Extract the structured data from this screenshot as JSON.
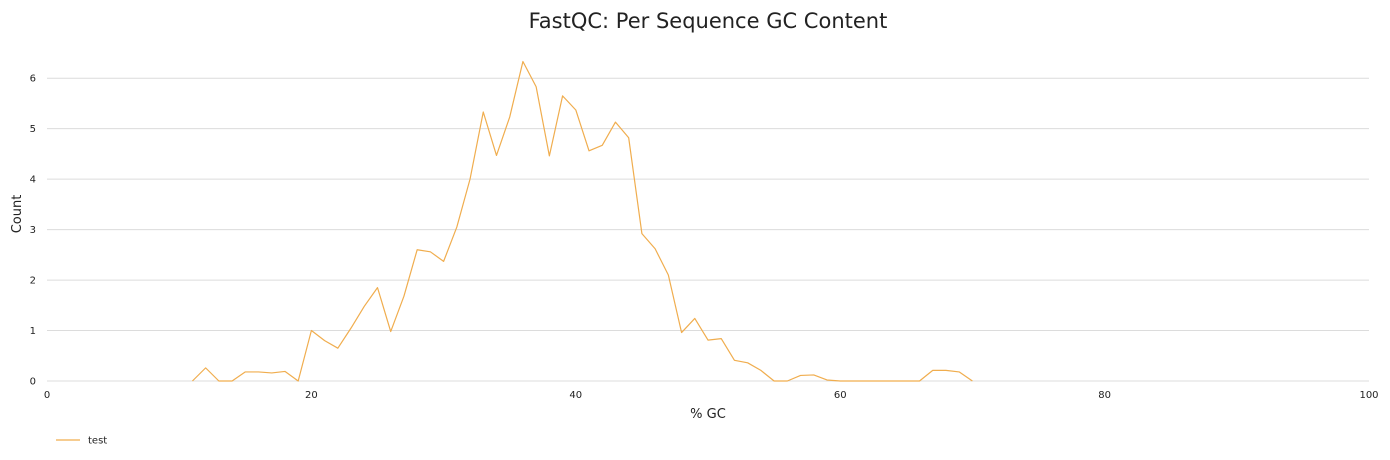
{
  "chart_data": {
    "type": "line",
    "title": "FastQC: Per Sequence GC Content",
    "xlabel": "% GC",
    "ylabel": "Count",
    "xlim": [
      0,
      100
    ],
    "ylim": [
      0,
      6.4
    ],
    "x_ticks": [
      0,
      20,
      40,
      60,
      80,
      100
    ],
    "x_tick_labels": [
      "0",
      "20",
      "40",
      "60",
      "80",
      "100"
    ],
    "y_ticks": [
      0,
      1,
      2,
      3,
      4,
      5,
      6
    ],
    "y_tick_labels": [
      "0",
      "1",
      "2",
      "3",
      "4",
      "5",
      "6"
    ],
    "grid": "horizontal",
    "legend_position": "bottom-left",
    "series": [
      {
        "name": "test",
        "color": "#f0ad4e",
        "points": [
          [
            11,
            0
          ],
          [
            12,
            0.26
          ],
          [
            13,
            0
          ],
          [
            14,
            0
          ],
          [
            15,
            0.18
          ],
          [
            16,
            0.18
          ],
          [
            17,
            0.16
          ],
          [
            18,
            0.19
          ],
          [
            19,
            0
          ],
          [
            20,
            1.0
          ],
          [
            21,
            0.8
          ],
          [
            22,
            0.65
          ],
          [
            23,
            1.05
          ],
          [
            24,
            1.48
          ],
          [
            25,
            1.85
          ],
          [
            26,
            0.98
          ],
          [
            27,
            1.68
          ],
          [
            28,
            2.6
          ],
          [
            29,
            2.56
          ],
          [
            30,
            2.37
          ],
          [
            31,
            3.05
          ],
          [
            32,
            4.0
          ],
          [
            33,
            5.33
          ],
          [
            34,
            4.47
          ],
          [
            35,
            5.23
          ],
          [
            36,
            6.33
          ],
          [
            37,
            5.83
          ],
          [
            38,
            4.46
          ],
          [
            39,
            5.65
          ],
          [
            40,
            5.37
          ],
          [
            41,
            4.56
          ],
          [
            42,
            4.67
          ],
          [
            43,
            5.13
          ],
          [
            44,
            4.82
          ],
          [
            45,
            2.92
          ],
          [
            46,
            2.62
          ],
          [
            47,
            2.1
          ],
          [
            48,
            0.96
          ],
          [
            49,
            1.24
          ],
          [
            50,
            0.81
          ],
          [
            51,
            0.84
          ],
          [
            52,
            0.41
          ],
          [
            53,
            0.36
          ],
          [
            54,
            0.21
          ],
          [
            55,
            0
          ],
          [
            56,
            0
          ],
          [
            57,
            0.11
          ],
          [
            58,
            0.12
          ],
          [
            59,
            0.02
          ],
          [
            60,
            0
          ],
          [
            61,
            0
          ],
          [
            62,
            0
          ],
          [
            63,
            0
          ],
          [
            64,
            0
          ],
          [
            65,
            0
          ],
          [
            66,
            0
          ],
          [
            67,
            0.21
          ],
          [
            68,
            0.21
          ],
          [
            69,
            0.18
          ],
          [
            70,
            0
          ]
        ]
      }
    ]
  }
}
